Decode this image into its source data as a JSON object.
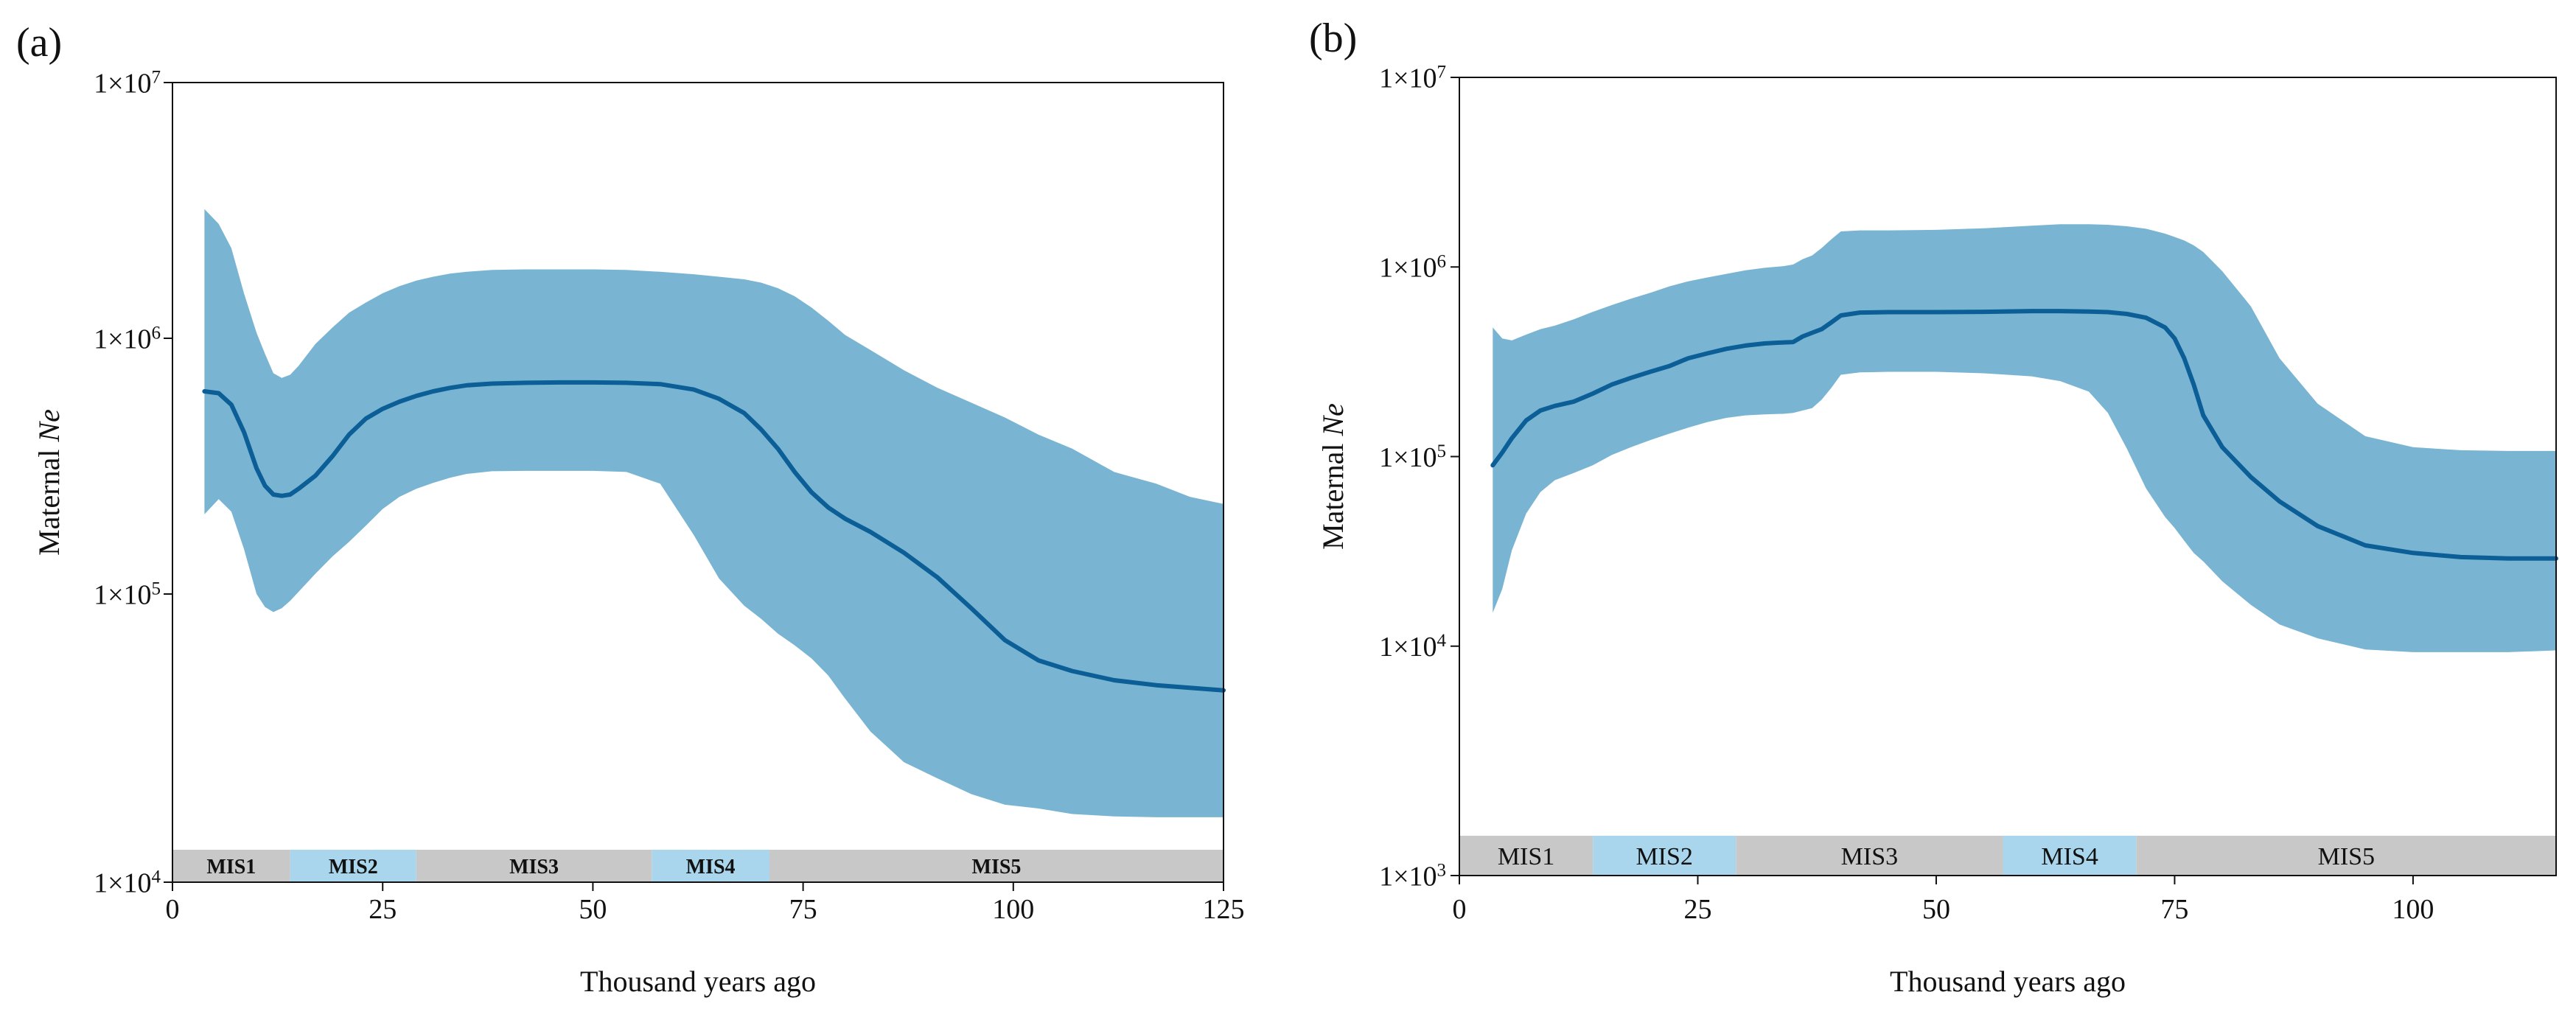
{
  "figure": {
    "panels": [
      "(a)",
      "(b)"
    ]
  },
  "colors": {
    "band": "#79b5d3",
    "median": "#0b5e96",
    "mis_gray": "#c8c8c8",
    "mis_blue": "#a9d6ec",
    "axis": "#111111"
  },
  "chart_data": [
    {
      "type": "area",
      "panel_label": "(a)",
      "xlabel": "Thousand years ago",
      "ylabel_prefix": "Maternal ",
      "ylabel_italic": "Ne",
      "xlim": [
        0,
        125
      ],
      "ylim_log10": [
        4,
        7
      ],
      "x_ticks": [
        0,
        25,
        50,
        75,
        100,
        125
      ],
      "x_tick_labels": [
        "0",
        "25",
        "50",
        "75",
        "100",
        "125"
      ],
      "y_ticks": [
        {
          "exp": 4,
          "base": "1×10",
          "sup": "4"
        },
        {
          "exp": 5,
          "base": "1×10",
          "sup": "5"
        },
        {
          "exp": 6,
          "base": "1×10",
          "sup": "6"
        },
        {
          "exp": 7,
          "base": "1×10",
          "sup": "7"
        }
      ],
      "mis_bold": true,
      "mis_stages": [
        {
          "label": "MIS1",
          "start": 0,
          "end": 14,
          "color": "gray"
        },
        {
          "label": "MIS2",
          "start": 14,
          "end": 29,
          "color": "blue"
        },
        {
          "label": "MIS3",
          "start": 29,
          "end": 57,
          "color": "gray"
        },
        {
          "label": "MIS4",
          "start": 57,
          "end": 71,
          "color": "blue"
        },
        {
          "label": "MIS5",
          "start": 71,
          "end": 125,
          "color": "gray"
        }
      ],
      "series": [
        {
          "name": "median",
          "x": [
            3.8,
            5.5,
            7,
            8.5,
            10,
            11,
            12,
            13,
            14,
            15,
            17,
            19,
            21,
            23,
            25,
            27,
            29,
            31,
            33,
            35,
            38,
            42,
            46,
            50,
            54,
            58,
            62,
            65,
            68,
            70,
            72,
            74,
            76,
            78,
            80,
            83,
            87,
            91,
            95,
            99,
            103,
            107,
            112,
            117,
            121,
            125
          ],
          "values": [
            620000,
            610000,
            550000,
            430000,
            310000,
            265000,
            245000,
            242000,
            245000,
            258000,
            290000,
            345000,
            420000,
            485000,
            530000,
            565000,
            595000,
            620000,
            640000,
            655000,
            665000,
            670000,
            672000,
            672000,
            670000,
            662000,
            630000,
            580000,
            510000,
            440000,
            370000,
            300000,
            250000,
            218000,
            197000,
            175000,
            145000,
            116000,
            88000,
            66000,
            55000,
            50000,
            46000,
            44000,
            43000,
            42000
          ]
        },
        {
          "name": "upper_95HPD",
          "x": [
            3.8,
            5.5,
            7,
            8.5,
            10,
            11,
            12,
            13,
            14,
            15,
            17,
            19,
            21,
            23,
            25,
            27,
            29,
            31,
            33,
            35,
            38,
            42,
            46,
            50,
            54,
            58,
            62,
            65,
            68,
            70,
            72,
            74,
            76,
            78,
            80,
            83,
            87,
            91,
            95,
            99,
            103,
            107,
            112,
            117,
            121,
            125
          ],
          "values": [
            3200000,
            2800000,
            2250000,
            1500000,
            1050000,
            870000,
            730000,
            700000,
            720000,
            780000,
            950000,
            1100000,
            1260000,
            1380000,
            1500000,
            1600000,
            1680000,
            1740000,
            1790000,
            1820000,
            1850000,
            1860000,
            1860000,
            1860000,
            1850000,
            1820000,
            1780000,
            1740000,
            1700000,
            1650000,
            1570000,
            1460000,
            1320000,
            1170000,
            1030000,
            900000,
            750000,
            640000,
            560000,
            490000,
            420000,
            370000,
            300000,
            270000,
            240000,
            225000
          ]
        },
        {
          "name": "lower_95HPD",
          "x": [
            3.8,
            5.5,
            7,
            8.5,
            10,
            11,
            12,
            13,
            14,
            15,
            17,
            19,
            21,
            23,
            25,
            27,
            29,
            31,
            33,
            35,
            38,
            42,
            46,
            50,
            54,
            58,
            62,
            65,
            68,
            70,
            72,
            74,
            76,
            78,
            80,
            83,
            87,
            91,
            95,
            99,
            103,
            107,
            112,
            117,
            121,
            125
          ],
          "values": [
            205000,
            235000,
            210000,
            150000,
            100000,
            89000,
            85000,
            88000,
            94000,
            102000,
            120000,
            140000,
            160000,
            185000,
            215000,
            240000,
            258000,
            272000,
            285000,
            295000,
            302000,
            303000,
            303000,
            303000,
            300000,
            270000,
            170000,
            115000,
            90000,
            80000,
            70000,
            63000,
            56000,
            48000,
            39000,
            29000,
            22000,
            19000,
            16500,
            15000,
            14500,
            13800,
            13500,
            13400,
            13400,
            13400
          ]
        }
      ]
    },
    {
      "type": "area",
      "panel_label": "(b)",
      "xlabel": "Thousand years ago",
      "ylabel_prefix": "Maternal ",
      "ylabel_italic": "Ne",
      "xlim": [
        0,
        115
      ],
      "ylim_log10": [
        3,
        7
      ],
      "x_ticks": [
        0,
        25,
        50,
        75,
        100
      ],
      "x_tick_labels": [
        "0",
        "25",
        "50",
        "75",
        "100"
      ],
      "y_ticks": [
        {
          "exp": 3,
          "base": "1×10",
          "sup": "3"
        },
        {
          "exp": 4,
          "base": "1×10",
          "sup": "4"
        },
        {
          "exp": 5,
          "base": "1×10",
          "sup": "5"
        },
        {
          "exp": 6,
          "base": "1×10",
          "sup": "6"
        },
        {
          "exp": 7,
          "base": "1×10",
          "sup": "7"
        }
      ],
      "mis_bold": false,
      "mis_stages": [
        {
          "label": "MIS1",
          "start": 0,
          "end": 14,
          "color": "gray"
        },
        {
          "label": "MIS2",
          "start": 14,
          "end": 29,
          "color": "blue"
        },
        {
          "label": "MIS3",
          "start": 29,
          "end": 57,
          "color": "gray"
        },
        {
          "label": "MIS4",
          "start": 57,
          "end": 71,
          "color": "blue"
        },
        {
          "label": "MIS5",
          "start": 71,
          "end": 115,
          "color": "gray"
        }
      ],
      "series": [
        {
          "name": "median",
          "x": [
            3.5,
            4.5,
            5.5,
            7,
            8.5,
            10,
            12,
            14,
            16,
            18,
            20,
            22,
            24,
            26,
            28,
            30,
            32,
            34,
            35,
            36,
            37,
            38,
            39,
            40,
            42,
            45,
            50,
            55,
            60,
            63,
            66,
            68,
            70,
            72,
            74,
            75,
            76,
            77,
            78,
            80,
            83,
            86,
            90,
            95,
            100,
            105,
            110,
            115
          ],
          "values": [
            90000,
            105000,
            125000,
            155000,
            175000,
            185000,
            195000,
            215000,
            240000,
            260000,
            280000,
            300000,
            330000,
            350000,
            370000,
            385000,
            395000,
            400000,
            402000,
            430000,
            450000,
            470000,
            510000,
            555000,
            575000,
            578000,
            578000,
            580000,
            585000,
            585000,
            582000,
            578000,
            565000,
            540000,
            480000,
            420000,
            330000,
            240000,
            165000,
            112000,
            78000,
            58000,
            43000,
            34000,
            31000,
            29500,
            29000,
            29000
          ]
        },
        {
          "name": "upper_95HPD",
          "x": [
            3.5,
            4.5,
            5.5,
            7,
            8.5,
            10,
            12,
            14,
            16,
            18,
            20,
            22,
            24,
            26,
            28,
            30,
            32,
            34,
            35,
            36,
            37,
            38,
            39,
            40,
            42,
            45,
            50,
            55,
            60,
            63,
            66,
            68,
            70,
            72,
            74,
            75,
            76,
            77,
            78,
            80,
            83,
            86,
            90,
            95,
            100,
            105,
            110,
            115
          ],
          "values": [
            480000,
            420000,
            410000,
            440000,
            470000,
            490000,
            530000,
            580000,
            630000,
            680000,
            730000,
            790000,
            840000,
            880000,
            920000,
            960000,
            990000,
            1010000,
            1030000,
            1100000,
            1150000,
            1260000,
            1400000,
            1540000,
            1560000,
            1560000,
            1570000,
            1600000,
            1650000,
            1680000,
            1680000,
            1670000,
            1640000,
            1590000,
            1500000,
            1440000,
            1380000,
            1300000,
            1200000,
            950000,
            620000,
            330000,
            190000,
            128000,
            112000,
            108000,
            107000,
            107000
          ]
        },
        {
          "name": "lower_95HPD",
          "x": [
            3.5,
            4.5,
            5.5,
            7,
            8.5,
            10,
            12,
            14,
            16,
            18,
            20,
            22,
            24,
            26,
            28,
            30,
            32,
            34,
            35,
            36,
            37,
            38,
            39,
            40,
            42,
            45,
            50,
            55,
            60,
            63,
            66,
            68,
            70,
            72,
            74,
            75,
            76,
            77,
            78,
            80,
            83,
            86,
            90,
            95,
            100,
            105,
            110,
            115
          ],
          "values": [
            15000,
            20000,
            32000,
            50000,
            65000,
            75000,
            82000,
            90000,
            102000,
            112000,
            122000,
            132000,
            142000,
            152000,
            160000,
            165000,
            167000,
            168000,
            170000,
            175000,
            180000,
            200000,
            230000,
            270000,
            278000,
            280000,
            280000,
            275000,
            265000,
            250000,
            220000,
            170000,
            110000,
            68000,
            48000,
            42000,
            36000,
            31000,
            28000,
            22000,
            16500,
            13000,
            11000,
            9600,
            9300,
            9300,
            9300,
            9500
          ]
        }
      ]
    }
  ]
}
